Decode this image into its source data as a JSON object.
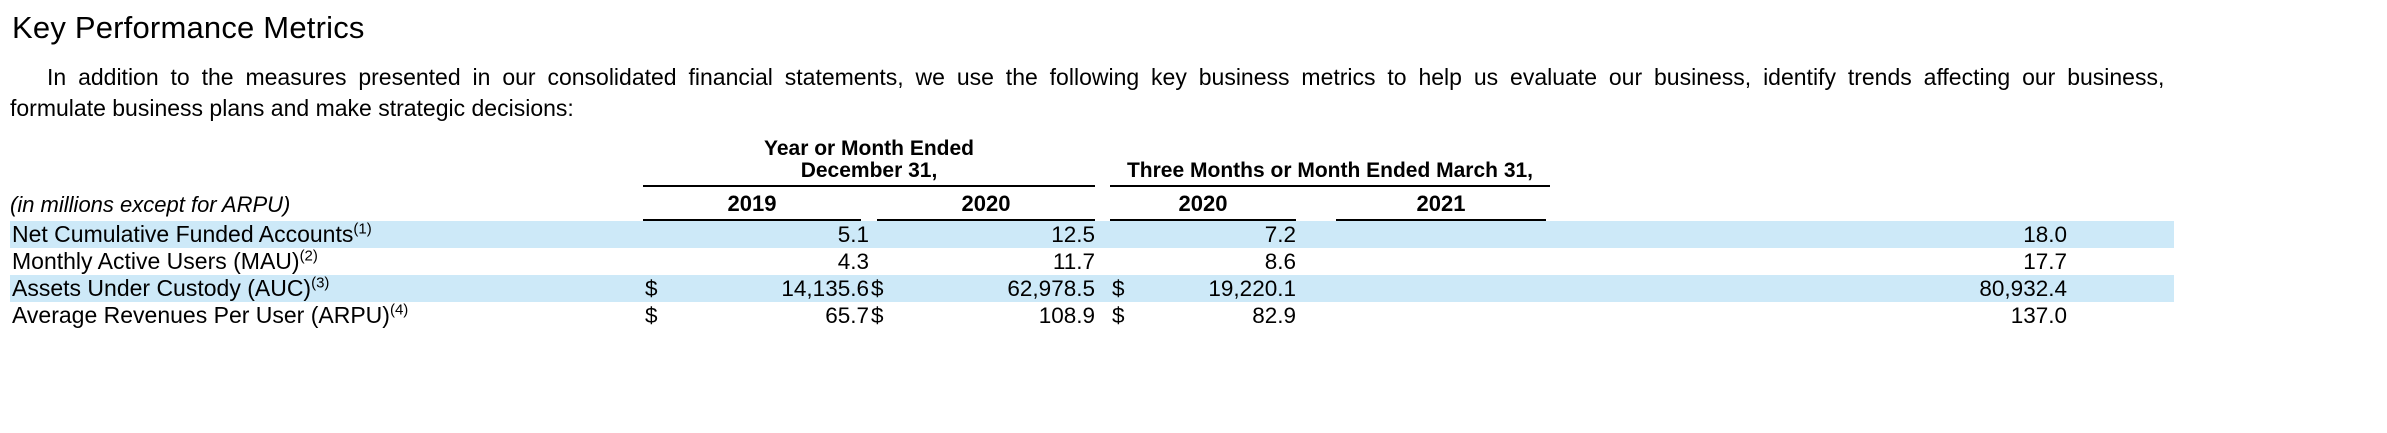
{
  "page": {
    "title": "Key Performance Metrics",
    "intro_line1": "In addition to the measures presented in our consolidated financial statements, we use the following key business metrics to help us evaluate our business, identify trends affecting our business,",
    "intro_line2": "formulate business plans and make strategic decisions:"
  },
  "colors": {
    "row_highlight": "#cde9f8",
    "rule": "#000000",
    "text": "#000000"
  },
  "table": {
    "units_note": "(in millions except for ARPU)",
    "group1": {
      "line1": "Year or Month Ended",
      "line2": "December 31,"
    },
    "group2": {
      "line1": "Three Months or Month Ended March 31,"
    },
    "year_headers": [
      "2019",
      "2020",
      "2020",
      "2021"
    ],
    "rows": [
      {
        "label": "Net Cumulative Funded Accounts",
        "footnote": "(1)",
        "currency": "",
        "values": [
          "5.1",
          "12.5",
          "7.2",
          "18.0"
        ],
        "highlight": true
      },
      {
        "label": "Monthly Active Users (MAU)",
        "footnote": "(2)",
        "currency": "",
        "values": [
          "4.3",
          "11.7",
          "8.6",
          "17.7"
        ],
        "highlight": false
      },
      {
        "label": "Assets Under Custody (AUC)",
        "footnote": "(3)",
        "currency": "$",
        "values": [
          "14,135.6",
          "62,978.5",
          "19,220.1",
          "80,932.4"
        ],
        "highlight": true
      },
      {
        "label": "Average Revenues Per User (ARPU)",
        "footnote": "(4)",
        "currency": "$",
        "values": [
          "65.7",
          "108.9",
          "82.9",
          "137.0"
        ],
        "highlight": false
      }
    ]
  }
}
